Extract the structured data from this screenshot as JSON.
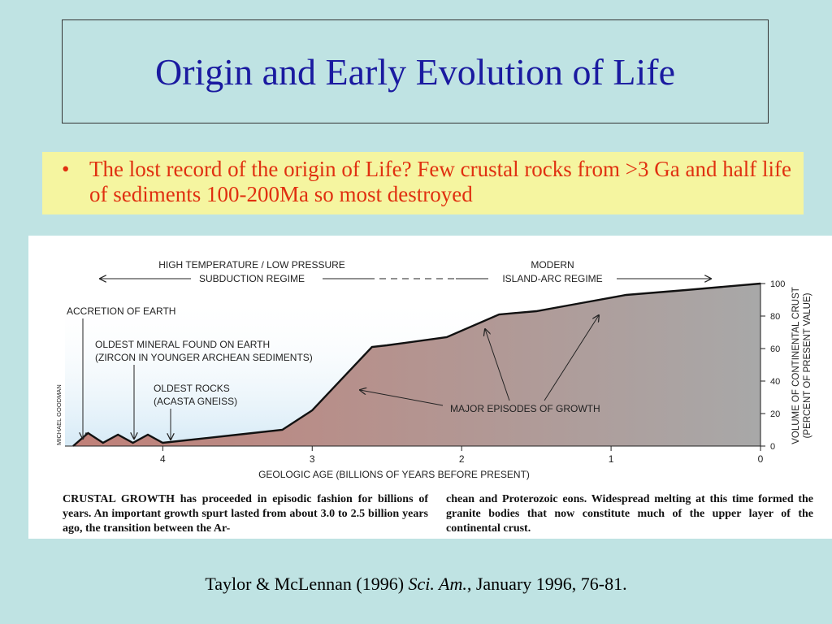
{
  "slide": {
    "title": "Origin and Early Evolution of Life",
    "bullet_marker": "•",
    "bullet_text": "The lost record of the origin of Life? Few crustal rocks from >3 Ga and half life of sediments 100-200Ma so most destroyed",
    "citation": {
      "prefix": "Taylor & McLennan (1996) ",
      "journal": "Sci. Am.",
      "suffix": ", January 1996, 76-81."
    }
  },
  "figure": {
    "regime_left_line1": "HIGH TEMPERATURE / LOW PRESSURE",
    "regime_left_line2": "SUBDUCTION REGIME",
    "regime_right_line1": "MODERN",
    "regime_right_line2": "ISLAND-ARC REGIME",
    "credit": "MICHAEL GOODMAN",
    "annotations": {
      "accretion": "ACCRETION OF EARTH",
      "mineral_line1": "OLDEST MINERAL FOUND ON EARTH",
      "mineral_line2": "(ZIRCON IN YOUNGER ARCHEAN SEDIMENTS)",
      "rocks_line1": "OLDEST ROCKS",
      "rocks_line2": "(ACASTA GNEISS)",
      "growth": "MAJOR EPISODES OF GROWTH"
    },
    "caption_left": "CRUSTAL GROWTH has proceeded in episodic fashion for billions of years. An important growth spurt lasted from about 3.0 to 2.5 billion years ago, the transition between the Ar-",
    "caption_right": "chean and Proterozoic eons. Widespread melting at this time formed the granite bodies that now constitute much of the upper layer of the continental crust.",
    "colors": {
      "fill_left": "#c08078",
      "fill_right": "#a8a8a8",
      "sky": "#d6eaf6"
    }
  },
  "chart_data": {
    "type": "area",
    "xlabel": "GEOLOGIC AGE (BILLIONS OF YEARS BEFORE PRESENT)",
    "ylabel_line1": "VOLUME OF CONTINENTAL CRUST",
    "ylabel_line2": "(PERCENT OF PRESENT VALUE)",
    "x_ticks": [
      4,
      3,
      2,
      1,
      0
    ],
    "y_ticks": [
      0,
      20,
      40,
      60,
      80,
      100
    ],
    "xlim": [
      4.6,
      0
    ],
    "ylim": [
      0,
      100
    ],
    "x_reversed": true,
    "series": [
      {
        "x": [
          4.6,
          4.5,
          4.4,
          4.3,
          4.2,
          4.1,
          4.0,
          3.9,
          3.5,
          3.2,
          3.0,
          2.6,
          2.5,
          2.1,
          1.75,
          1.5,
          1.2,
          0.9,
          0.5,
          0.0
        ],
        "y": [
          0,
          8,
          2,
          7,
          2,
          7,
          2,
          3,
          7,
          10,
          22,
          61,
          62,
          67,
          81,
          83,
          88,
          93,
          96,
          100
        ]
      }
    ]
  }
}
